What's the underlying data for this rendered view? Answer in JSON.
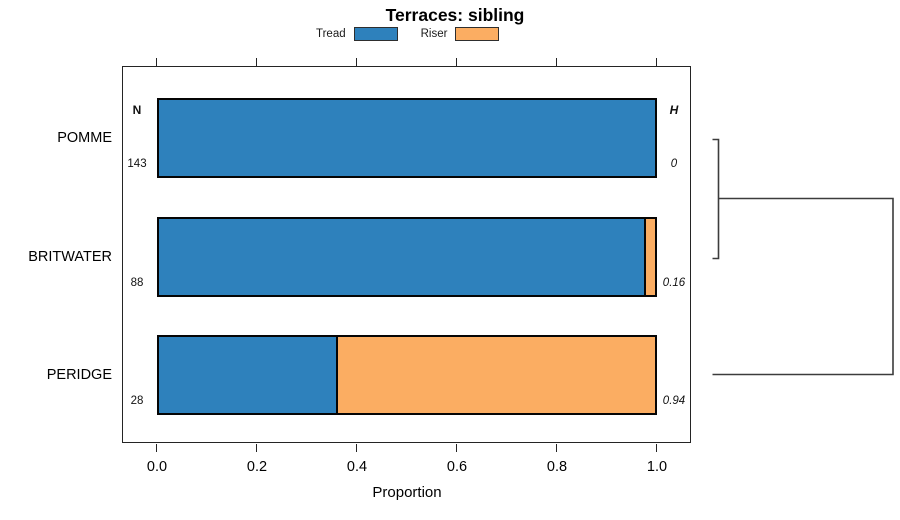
{
  "chart_data": {
    "type": "bar",
    "orientation": "horizontal",
    "stacked": true,
    "title": "Terraces: sibling",
    "xlabel": "Proportion",
    "xlim": [
      0.0,
      1.0
    ],
    "x_ticks": [
      "0.0",
      "0.2",
      "0.4",
      "0.6",
      "0.8",
      "1.0"
    ],
    "grid": false,
    "legend_position": "top",
    "categories": [
      "POMME",
      "BRITWATER",
      "PERIDGE"
    ],
    "series": [
      {
        "name": "Tread",
        "color": "#2e81bc",
        "values": [
          1.0,
          0.977,
          0.357
        ]
      },
      {
        "name": "Riser",
        "color": "#fbad62",
        "values": [
          0.0,
          0.023,
          0.643
        ]
      }
    ],
    "annotations": {
      "n_header": "N",
      "h_header": "H",
      "n_values": [
        "143",
        "88",
        "28"
      ],
      "h_values": [
        "0",
        "0.16",
        "0.94"
      ]
    },
    "dendrogram": {
      "merges": [
        {
          "members": [
            "POMME",
            "BRITWATER"
          ],
          "height": 0.16
        },
        {
          "members": [
            "POMME",
            "BRITWATER",
            "PERIDGE"
          ],
          "height": 0.94
        }
      ]
    }
  }
}
